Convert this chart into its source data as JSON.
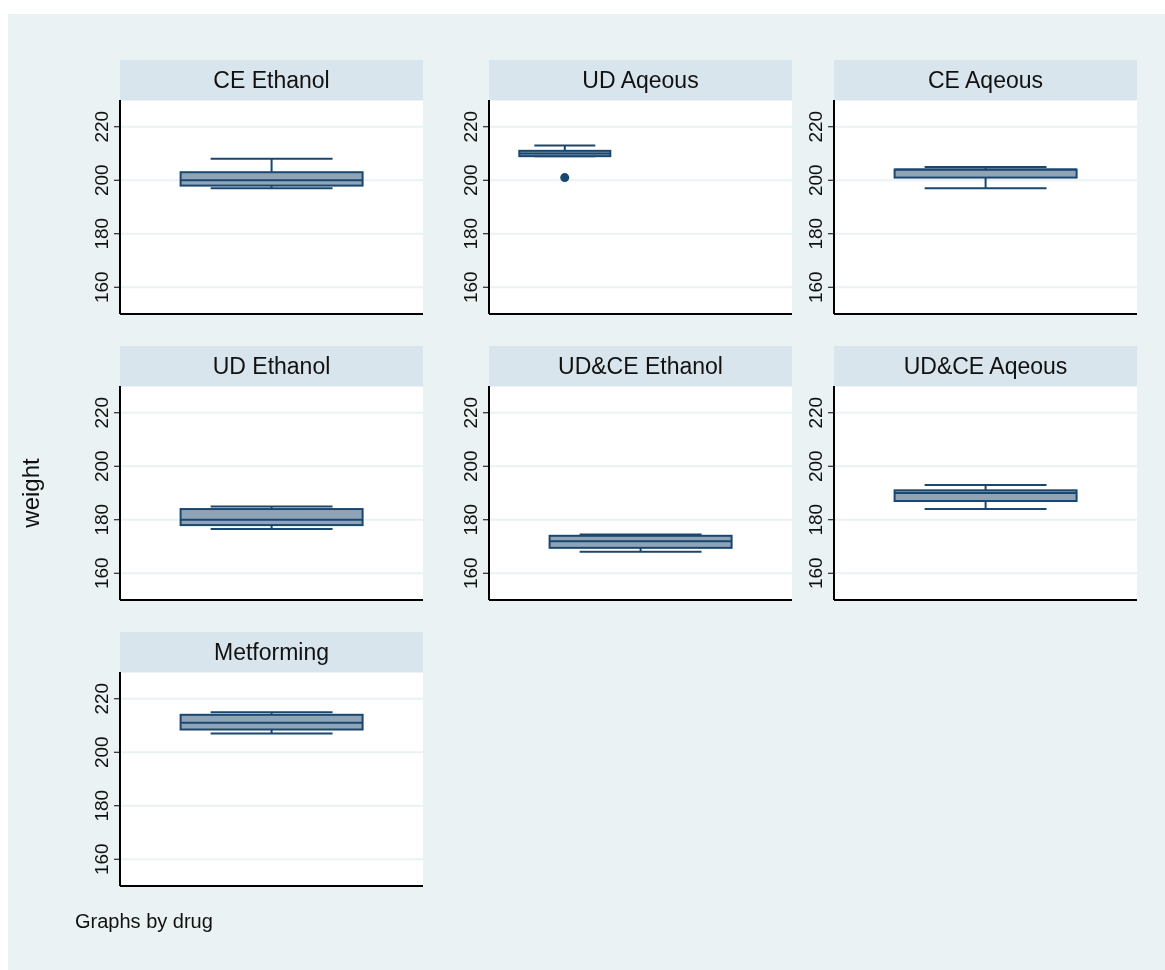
{
  "chart_data": [
    {
      "type": "box",
      "title": "CE Ethanol",
      "categories": [
        null
      ],
      "boxes": [
        {
          "low": 197,
          "q1": 198,
          "median": 200,
          "q3": 203,
          "high": 208
        }
      ],
      "color": "#90a4b8",
      "ylim": [
        150,
        230
      ],
      "yticks": [
        160,
        180,
        200,
        220
      ],
      "grid": "y",
      "tick_labels": "y"
    },
    {
      "type": "box",
      "title": "UD Aqeous",
      "categories": [
        null
      ],
      "boxes": [
        {
          "low": 209,
          "q1": 209,
          "median": 210,
          "q3": 211,
          "high": 213,
          "outliers": [
            201
          ]
        }
      ],
      "color": "#90a4b8",
      "ylim": [
        150,
        230
      ],
      "yticks": [
        160,
        180,
        200,
        220
      ],
      "grid": "y",
      "tick_labels": "y"
    },
    {
      "type": "box",
      "title": "CE Aqeous",
      "categories": [
        null
      ],
      "boxes": [
        {
          "low": 197,
          "q1": 201,
          "median": 204,
          "q3": 204,
          "high": 205
        }
      ],
      "color": "#90a4b8",
      "ylim": [
        150,
        230
      ],
      "yticks": [
        160,
        180,
        200,
        220
      ],
      "grid": "y",
      "tick_labels": "y"
    },
    {
      "type": "box",
      "title": "UD Ethanol",
      "ylabel": "weight",
      "categories": [
        null
      ],
      "boxes": [
        {
          "low": 176.5,
          "q1": 178,
          "median": 180,
          "q3": 184,
          "high": 185
        }
      ],
      "color": "#90a4b8",
      "ylim": [
        150,
        230
      ],
      "yticks": [
        160,
        180,
        200,
        220
      ],
      "grid": "y",
      "tick_labels": "y"
    },
    {
      "type": "box",
      "title": "UD&CE Ethanol",
      "categories": [
        null
      ],
      "boxes": [
        {
          "low": 168,
          "q1": 169.5,
          "median": 172,
          "q3": 174,
          "high": 174.5
        }
      ],
      "color": "#90a4b8",
      "ylim": [
        150,
        230
      ],
      "yticks": [
        160,
        180,
        200,
        220
      ],
      "grid": "y",
      "tick_labels": "y"
    },
    {
      "type": "box",
      "title": "UD&CE Aqeous",
      "categories": [
        null
      ],
      "boxes": [
        {
          "low": 184,
          "q1": 187,
          "median": 190,
          "q3": 191,
          "high": 193
        }
      ],
      "color": "#90a4b8",
      "ylim": [
        150,
        230
      ],
      "yticks": [
        160,
        180,
        200,
        220
      ],
      "grid": "y",
      "tick_labels": "y"
    },
    {
      "type": "box",
      "title": "Metforming",
      "categories": [
        null
      ],
      "boxes": [
        {
          "low": 207,
          "q1": 208.5,
          "median": 211,
          "q3": 214,
          "high": 215
        }
      ],
      "color": "#90a4b8",
      "ylim": [
        150,
        230
      ],
      "yticks": [
        160,
        180,
        200,
        220
      ],
      "grid": "y",
      "tick_labels": "y",
      "annotations": [
        "Graphs by drug"
      ]
    }
  ]
}
